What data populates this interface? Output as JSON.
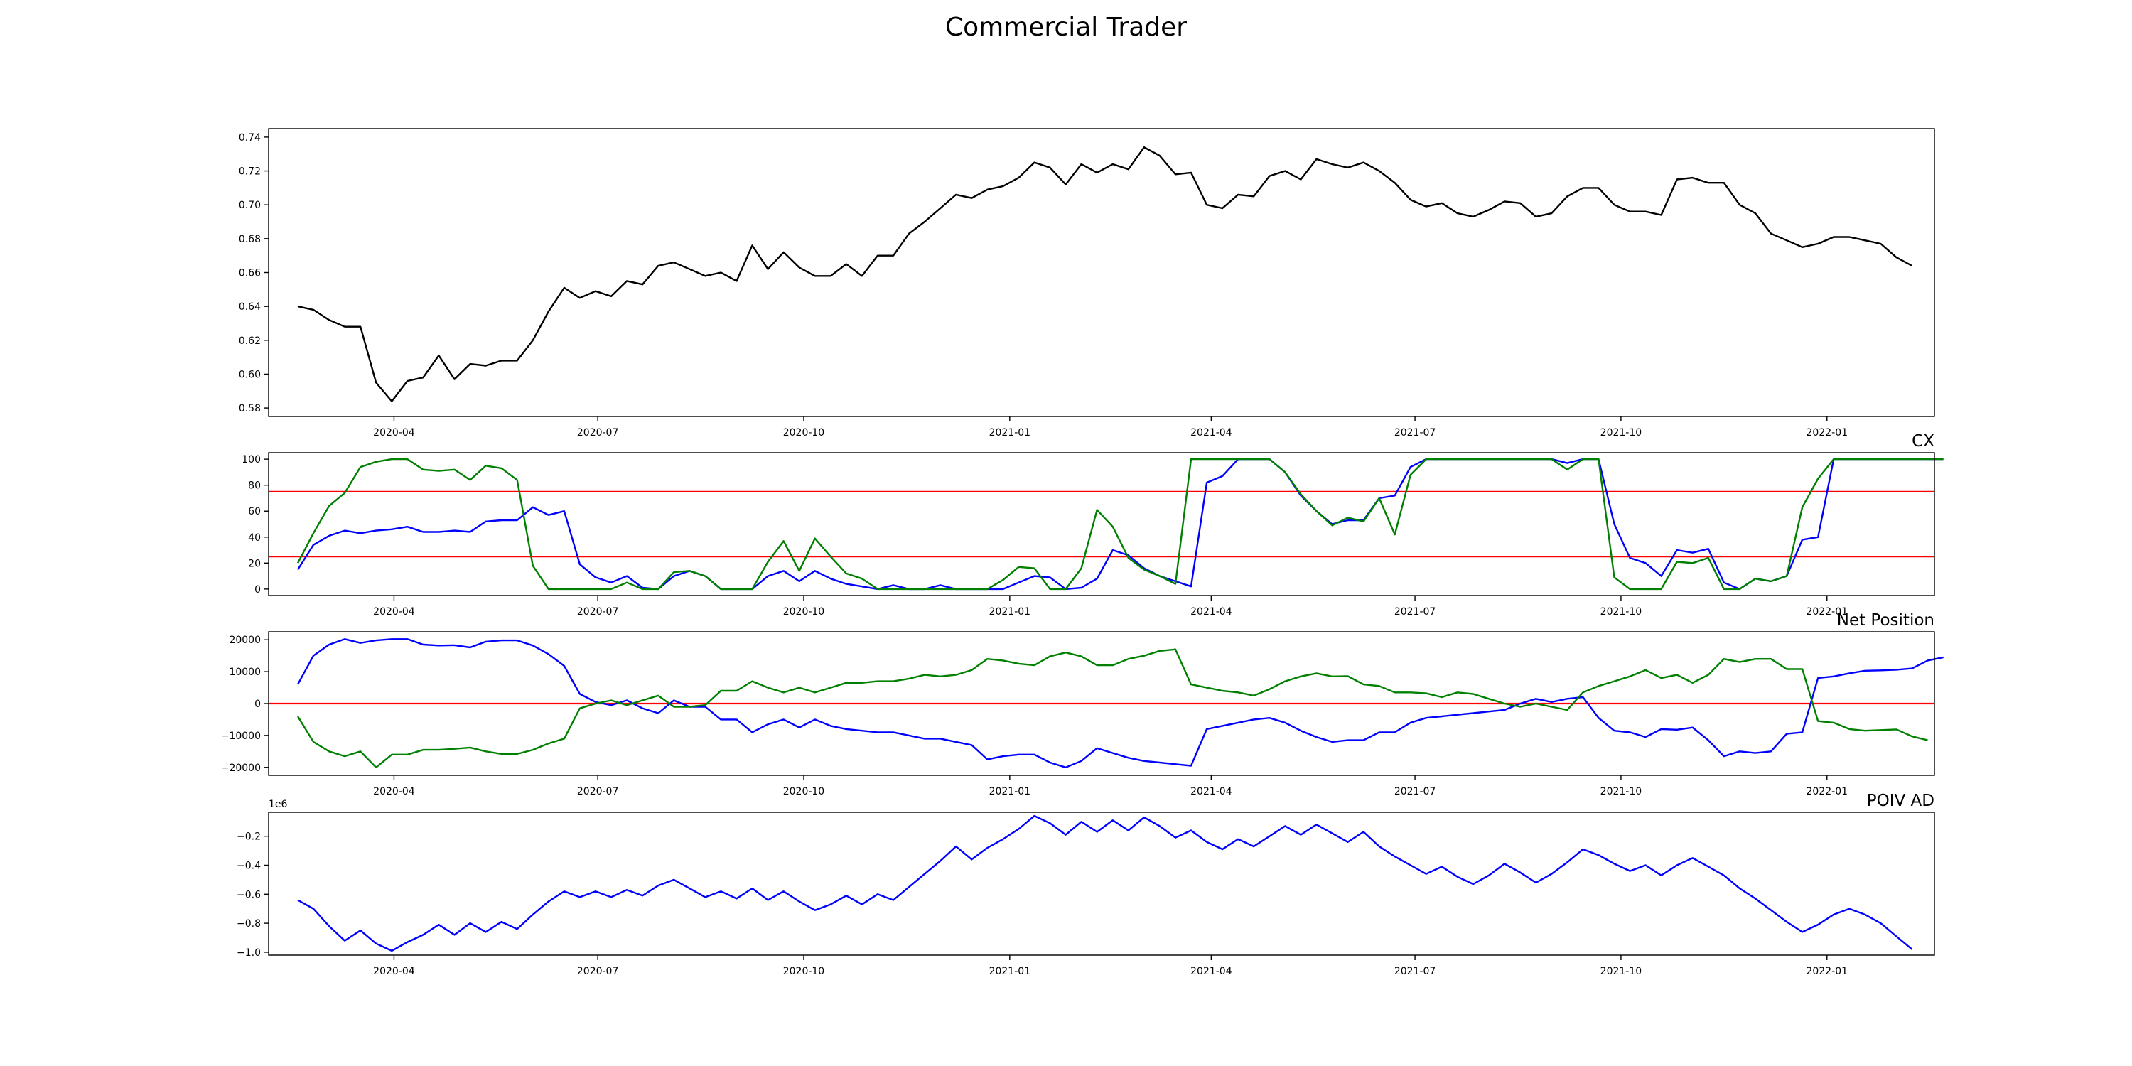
{
  "title": "Commercial Trader",
  "colors": {
    "price": "#000000",
    "blue": "#0000ff",
    "green": "#008000",
    "red": "#ff0000"
  },
  "chart_data": [
    {
      "type": "line",
      "title": "",
      "x_axis_type": "date",
      "xlim": [
        "2020-02-05",
        "2022-02-18"
      ],
      "x_ticks": [
        {
          "date": "2020-04-01",
          "label": "2020-04"
        },
        {
          "date": "2020-07-01",
          "label": "2020-07"
        },
        {
          "date": "2020-10-01",
          "label": "2020-10"
        },
        {
          "date": "2021-01-01",
          "label": "2021-01"
        },
        {
          "date": "2021-04-01",
          "label": "2021-04"
        },
        {
          "date": "2021-07-01",
          "label": "2021-07"
        },
        {
          "date": "2021-10-01",
          "label": "2021-10"
        },
        {
          "date": "2022-01-01",
          "label": "2022-01"
        }
      ],
      "ylim": [
        0.575,
        0.745
      ],
      "y_ticks": [
        0.58,
        0.6,
        0.62,
        0.64,
        0.66,
        0.68,
        0.7,
        0.72,
        0.74
      ],
      "y_tick_labels": [
        "0.58",
        "0.60",
        "0.62",
        "0.64",
        "0.66",
        "0.68",
        "0.70",
        "0.72",
        "0.74"
      ],
      "grid": false,
      "series": [
        {
          "color": "#000000",
          "x_start": "2020-02-18",
          "x_step_days": 7,
          "values": [
            0.64,
            0.638,
            0.632,
            0.628,
            0.628,
            0.595,
            0.584,
            0.596,
            0.598,
            0.611,
            0.597,
            0.606,
            0.605,
            0.608,
            0.608,
            0.62,
            0.637,
            0.651,
            0.645,
            0.649,
            0.646,
            0.655,
            0.653,
            0.664,
            0.666,
            0.662,
            0.658,
            0.66,
            0.655,
            0.676,
            0.662,
            0.672,
            0.663,
            0.658,
            0.658,
            0.665,
            0.658,
            0.67,
            0.67,
            0.683,
            0.69,
            0.698,
            0.706,
            0.704,
            0.709,
            0.711,
            0.716,
            0.725,
            0.722,
            0.712,
            0.724,
            0.719,
            0.724,
            0.721,
            0.734,
            0.729,
            0.718,
            0.719,
            0.7,
            0.698,
            0.706,
            0.705,
            0.717,
            0.72,
            0.715,
            0.727,
            0.724,
            0.722,
            0.725,
            0.72,
            0.713,
            0.703,
            0.699,
            0.701,
            0.695,
            0.693,
            0.697,
            0.702,
            0.701,
            0.693,
            0.695,
            0.705,
            0.71,
            0.71,
            0.7,
            0.696,
            0.696,
            0.694,
            0.715,
            0.716,
            0.713,
            0.713,
            0.7,
            0.695,
            0.683,
            0.679,
            0.675,
            0.677,
            0.681,
            0.681,
            0.679,
            0.677,
            0.669,
            0.664
          ]
        }
      ]
    },
    {
      "type": "line",
      "title": "CX",
      "x_axis_type": "date",
      "xlim": [
        "2020-02-05",
        "2022-02-18"
      ],
      "x_ticks": [
        {
          "date": "2020-04-01",
          "label": "2020-04"
        },
        {
          "date": "2020-07-01",
          "label": "2020-07"
        },
        {
          "date": "2020-10-01",
          "label": "2020-10"
        },
        {
          "date": "2021-01-01",
          "label": "2021-01"
        },
        {
          "date": "2021-04-01",
          "label": "2021-04"
        },
        {
          "date": "2021-07-01",
          "label": "2021-07"
        },
        {
          "date": "2021-10-01",
          "label": "2021-10"
        },
        {
          "date": "2022-01-01",
          "label": "2022-01"
        }
      ],
      "ylim": [
        -5,
        105
      ],
      "y_ticks": [
        0,
        20,
        40,
        60,
        80,
        100
      ],
      "y_tick_labels": [
        "0",
        "20",
        "40",
        "60",
        "80",
        "100"
      ],
      "grid": false,
      "hlines": [
        {
          "y": 75,
          "color": "#ff0000"
        },
        {
          "y": 25,
          "color": "#ff0000"
        }
      ],
      "series": [
        {
          "color": "#0000ff",
          "x_start": "2020-02-18",
          "x_step_days": 7,
          "values": [
            15,
            34,
            41,
            45,
            43,
            45,
            46,
            48,
            44,
            44,
            45,
            44,
            52,
            53,
            53,
            63,
            57,
            60,
            19,
            9,
            5,
            10,
            1,
            0,
            10,
            14,
            10,
            0,
            0,
            0,
            10,
            14,
            6,
            14,
            8,
            4,
            2,
            0,
            3,
            0,
            0,
            3,
            0,
            0,
            0,
            0,
            5,
            10,
            9,
            0,
            1,
            8,
            30,
            26,
            16,
            10,
            6,
            2,
            82,
            87,
            100,
            100,
            100,
            90,
            72,
            60,
            50,
            53,
            53,
            70,
            72,
            94,
            100,
            100,
            100,
            100,
            100,
            100,
            100,
            100,
            100,
            97,
            100,
            100,
            50,
            24,
            20,
            10,
            30,
            28,
            31,
            5,
            0,
            8,
            6,
            10,
            38,
            40,
            100,
            100,
            100,
            100,
            100,
            100,
            100,
            100
          ]
        },
        {
          "color": "#008000",
          "x_start": "2020-02-18",
          "x_step_days": 7,
          "values": [
            20,
            43,
            64,
            74,
            94,
            98,
            100,
            100,
            92,
            91,
            92,
            84,
            95,
            93,
            84,
            18,
            0,
            0,
            0,
            0,
            0,
            5,
            0,
            0,
            13,
            14,
            10,
            0,
            0,
            0,
            21,
            37,
            14,
            39,
            25,
            12,
            8,
            0,
            0,
            0,
            0,
            0,
            0,
            0,
            0,
            7,
            17,
            16,
            0,
            0,
            16,
            61,
            48,
            24,
            15,
            10,
            4,
            100,
            100,
            100,
            100,
            100,
            100,
            90,
            73,
            60,
            49,
            55,
            52,
            70,
            42,
            88,
            100,
            100,
            100,
            100,
            100,
            100,
            100,
            100,
            100,
            92,
            100,
            100,
            9,
            0,
            0,
            0,
            21,
            20,
            24,
            0,
            0,
            8,
            6,
            10,
            63,
            85,
            100,
            100,
            100,
            100,
            100,
            100,
            100,
            100
          ]
        }
      ]
    },
    {
      "type": "line",
      "title": "Net Position",
      "x_axis_type": "date",
      "xlim": [
        "2020-02-05",
        "2022-02-18"
      ],
      "x_ticks": [
        {
          "date": "2020-04-01",
          "label": "2020-04"
        },
        {
          "date": "2020-07-01",
          "label": "2020-07"
        },
        {
          "date": "2020-10-01",
          "label": "2020-10"
        },
        {
          "date": "2021-01-01",
          "label": "2021-01"
        },
        {
          "date": "2021-04-01",
          "label": "2021-04"
        },
        {
          "date": "2021-07-01",
          "label": "2021-07"
        },
        {
          "date": "2021-10-01",
          "label": "2021-10"
        },
        {
          "date": "2022-01-01",
          "label": "2022-01"
        }
      ],
      "ylim": [
        -22500,
        22500
      ],
      "y_ticks": [
        -20000,
        -10000,
        0,
        10000,
        20000
      ],
      "y_tick_labels": [
        "−20000",
        "−10000",
        "0",
        "10000",
        "20000"
      ],
      "grid": false,
      "hlines": [
        {
          "y": 0,
          "color": "#ff0000"
        }
      ],
      "series": [
        {
          "color": "#0000ff",
          "x_start": "2020-02-18",
          "x_step_days": 7,
          "values": [
            6000,
            15000,
            18500,
            20200,
            19000,
            19800,
            20200,
            20200,
            18500,
            18200,
            18300,
            17600,
            19400,
            19800,
            19800,
            18200,
            15500,
            11800,
            3000,
            500,
            -500,
            1000,
            -1500,
            -3000,
            1000,
            -1000,
            -1000,
            -5000,
            -5000,
            -9000,
            -6500,
            -5000,
            -7500,
            -5000,
            -7000,
            -8000,
            -8500,
            -9000,
            -9000,
            -10000,
            -11000,
            -11000,
            -12000,
            -13000,
            -17500,
            -16500,
            -16000,
            -16000,
            -18500,
            -20000,
            -18000,
            -14000,
            -15500,
            -17000,
            -18000,
            -18500,
            -19000,
            -19500,
            -8000,
            -7000,
            -6000,
            -5000,
            -4500,
            -6000,
            -8500,
            -10500,
            -12000,
            -11500,
            -11500,
            -9000,
            -9000,
            -6000,
            -4500,
            -4000,
            -3500,
            -3000,
            -2500,
            -2000,
            0,
            1500,
            500,
            1500,
            2000,
            -4500,
            -8500,
            -9000,
            -10500,
            -8000,
            -8200,
            -7500,
            -11500,
            -16500,
            -15000,
            -15500,
            -15000,
            -9500,
            -9000,
            8000,
            8500,
            9500,
            10300,
            10400,
            10600,
            11000,
            13500,
            14500
          ]
        },
        {
          "color": "#008000",
          "x_start": "2020-02-18",
          "x_step_days": 7,
          "values": [
            -4000,
            -12000,
            -15000,
            -16500,
            -15000,
            -20000,
            -16000,
            -16000,
            -14500,
            -14500,
            -14200,
            -13800,
            -15000,
            -15800,
            -15800,
            -14500,
            -12500,
            -11000,
            -1500,
            0,
            1000,
            -500,
            1000,
            2500,
            -1000,
            -1000,
            -500,
            4000,
            4000,
            7000,
            5000,
            3500,
            5000,
            3500,
            5000,
            6500,
            6500,
            7000,
            7000,
            7800,
            9000,
            8500,
            9000,
            10500,
            14000,
            13500,
            12500,
            12000,
            14800,
            16000,
            14800,
            12000,
            12000,
            14000,
            15000,
            16500,
            17000,
            6000,
            5000,
            4000,
            3500,
            2500,
            4500,
            7000,
            8500,
            9500,
            8500,
            8600,
            6000,
            5500,
            3500,
            3500,
            3200,
            2000,
            3500,
            3000,
            1500,
            0,
            -1000,
            0,
            -1000,
            -2000,
            3500,
            5500,
            7000,
            8500,
            10500,
            8000,
            9000,
            6500,
            9000,
            14000,
            13000,
            14000,
            14000,
            10800,
            10800,
            -5500,
            -6000,
            -8000,
            -8500,
            -8300,
            -8100,
            -10300,
            -11500
          ]
        }
      ]
    },
    {
      "type": "line",
      "title": "POIV AD",
      "x_axis_type": "date",
      "xlim": [
        "2020-02-05",
        "2022-02-18"
      ],
      "x_ticks": [
        {
          "date": "2020-04-01",
          "label": "2020-04"
        },
        {
          "date": "2020-07-01",
          "label": "2020-07"
        },
        {
          "date": "2020-10-01",
          "label": "2020-10"
        },
        {
          "date": "2021-01-01",
          "label": "2021-01"
        },
        {
          "date": "2021-04-01",
          "label": "2021-04"
        },
        {
          "date": "2021-07-01",
          "label": "2021-07"
        },
        {
          "date": "2021-10-01",
          "label": "2021-10"
        },
        {
          "date": "2022-01-01",
          "label": "2022-01"
        }
      ],
      "ylim": [
        -1.02,
        -0.035
      ],
      "y_ticks": [
        -1.0,
        -0.8,
        -0.6,
        -0.4,
        -0.2
      ],
      "y_tick_labels": [
        "−1.0",
        "−0.8",
        "−0.6",
        "−0.4",
        "−0.2"
      ],
      "y_offset_label": "1e6",
      "grid": false,
      "series": [
        {
          "color": "#0000ff",
          "x_start": "2020-02-18",
          "x_step_days": 7,
          "values": [
            -0.64,
            -0.7,
            -0.82,
            -0.92,
            -0.85,
            -0.94,
            -0.99,
            -0.93,
            -0.88,
            -0.81,
            -0.88,
            -0.8,
            -0.86,
            -0.79,
            -0.84,
            -0.74,
            -0.65,
            -0.58,
            -0.62,
            -0.58,
            -0.62,
            -0.57,
            -0.61,
            -0.54,
            -0.5,
            -0.56,
            -0.62,
            -0.58,
            -0.63,
            -0.56,
            -0.64,
            -0.58,
            -0.65,
            -0.71,
            -0.67,
            -0.61,
            -0.67,
            -0.6,
            -0.64,
            -0.55,
            -0.46,
            -0.37,
            -0.27,
            -0.36,
            -0.28,
            -0.22,
            -0.15,
            -0.06,
            -0.11,
            -0.19,
            -0.1,
            -0.17,
            -0.09,
            -0.16,
            -0.07,
            -0.13,
            -0.21,
            -0.16,
            -0.24,
            -0.29,
            -0.22,
            -0.27,
            -0.2,
            -0.13,
            -0.19,
            -0.12,
            -0.18,
            -0.24,
            -0.17,
            -0.27,
            -0.34,
            -0.4,
            -0.46,
            -0.41,
            -0.48,
            -0.53,
            -0.47,
            -0.39,
            -0.45,
            -0.52,
            -0.46,
            -0.38,
            -0.29,
            -0.33,
            -0.39,
            -0.44,
            -0.4,
            -0.47,
            -0.4,
            -0.35,
            -0.41,
            -0.47,
            -0.56,
            -0.63,
            -0.71,
            -0.79,
            -0.86,
            -0.81,
            -0.74,
            -0.7,
            -0.74,
            -0.8,
            -0.89,
            -0.98
          ]
        }
      ]
    }
  ]
}
